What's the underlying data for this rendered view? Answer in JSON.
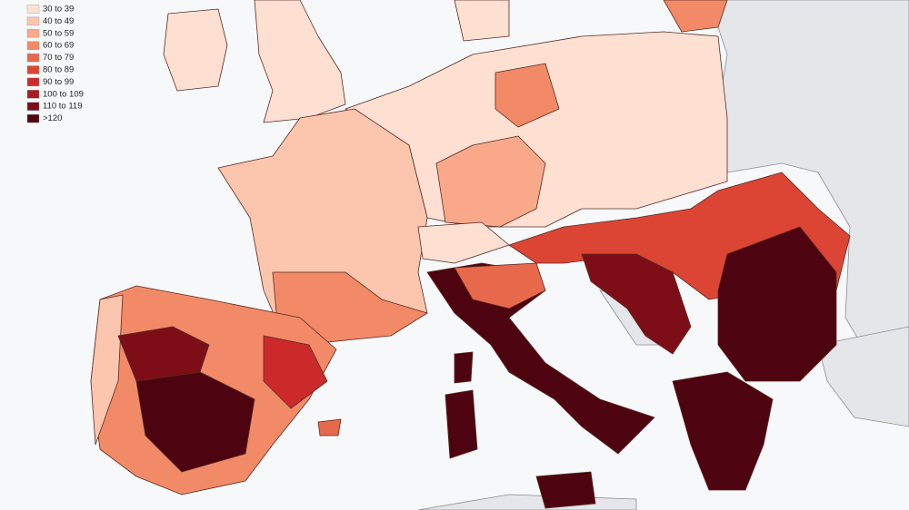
{
  "legend": {
    "items": [
      {
        "label": "30 to 39",
        "color": "#fde0d2"
      },
      {
        "label": "40 to 49",
        "color": "#fcc5ae"
      },
      {
        "label": "50 to 59",
        "color": "#f9a88a"
      },
      {
        "label": "60 to 69",
        "color": "#f28a68"
      },
      {
        "label": "70 to 79",
        "color": "#e8684c"
      },
      {
        "label": "80 to 89",
        "color": "#dc4534"
      },
      {
        "label": "90 to 99",
        "color": "#cc2a2a"
      },
      {
        "label": "100 to 109",
        "color": "#a81c22"
      },
      {
        "label": "110 to 119",
        "color": "#7d0e18"
      },
      {
        "label": ">120",
        "color": "#4e0410"
      }
    ]
  }
}
